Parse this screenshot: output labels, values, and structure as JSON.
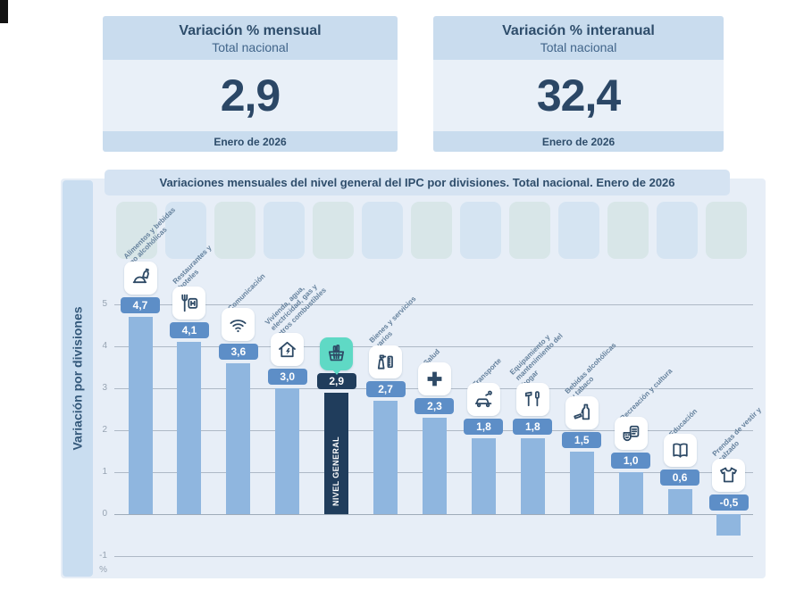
{
  "summary_cards": [
    {
      "title": "Variación % mensual",
      "subtitle": "Total nacional",
      "value": "2,9",
      "period": "Enero de 2026"
    },
    {
      "title": "Variación % interanual",
      "subtitle": "Total nacional",
      "value": "32,4",
      "period": "Enero de 2026"
    }
  ],
  "chart_data": {
    "type": "bar",
    "title": "Variaciones mensuales del nivel general del IPC por divisiones. Total nacional. Enero de 2026",
    "ylabel": "Variación por divisiones",
    "y_unit": "%",
    "ylim": [
      -1.5,
      5.5
    ],
    "yticks": [
      5,
      4,
      3,
      2,
      1,
      0,
      -1
    ],
    "grid": true,
    "legend": false,
    "categories": [
      "Alimentos y bebidas no alcohólicas",
      "Restaurantes y hoteles",
      "Comunicación",
      "Vivienda, agua, electricidad, gas y otros combustibles",
      "Nivel general",
      "Bienes y servicios varios",
      "Salud",
      "Transporte",
      "Equipamiento y mantenimiento del hogar",
      "Bebidas alcohólicas y tabaco",
      "Recreación y cultura",
      "Educación",
      "Prendas de vestir y calzado"
    ],
    "values": [
      4.7,
      4.1,
      3.6,
      3.0,
      2.9,
      2.7,
      2.3,
      1.8,
      1.8,
      1.5,
      1.0,
      0.6,
      -0.5
    ],
    "value_labels": [
      "4,7",
      "4,1",
      "3,6",
      "3,0",
      "2,9",
      "2,7",
      "2,3",
      "1,8",
      "1,8",
      "1,5",
      "1,0",
      "0,6",
      "-0,5"
    ],
    "icons": [
      "food-and-beverages-icon",
      "restaurants-hotels-icon",
      "communication-icon",
      "housing-utilities-icon",
      "general-level-basket-icon",
      "goods-services-icon",
      "health-icon",
      "transport-icon",
      "home-equipment-icon",
      "alcohol-tobacco-icon",
      "recreation-culture-icon",
      "education-icon",
      "clothing-footwear-icon"
    ],
    "highlight": {
      "index": 4,
      "bar_label": "NIVEL GENERAL"
    },
    "colors": {
      "bar": "#8fb6df",
      "badge": "#5d8ec7",
      "highlight": "#203d5c",
      "highlight_tile": "#5fd9c5",
      "tile": "#ffffff",
      "icon": "#2e4a66"
    }
  }
}
